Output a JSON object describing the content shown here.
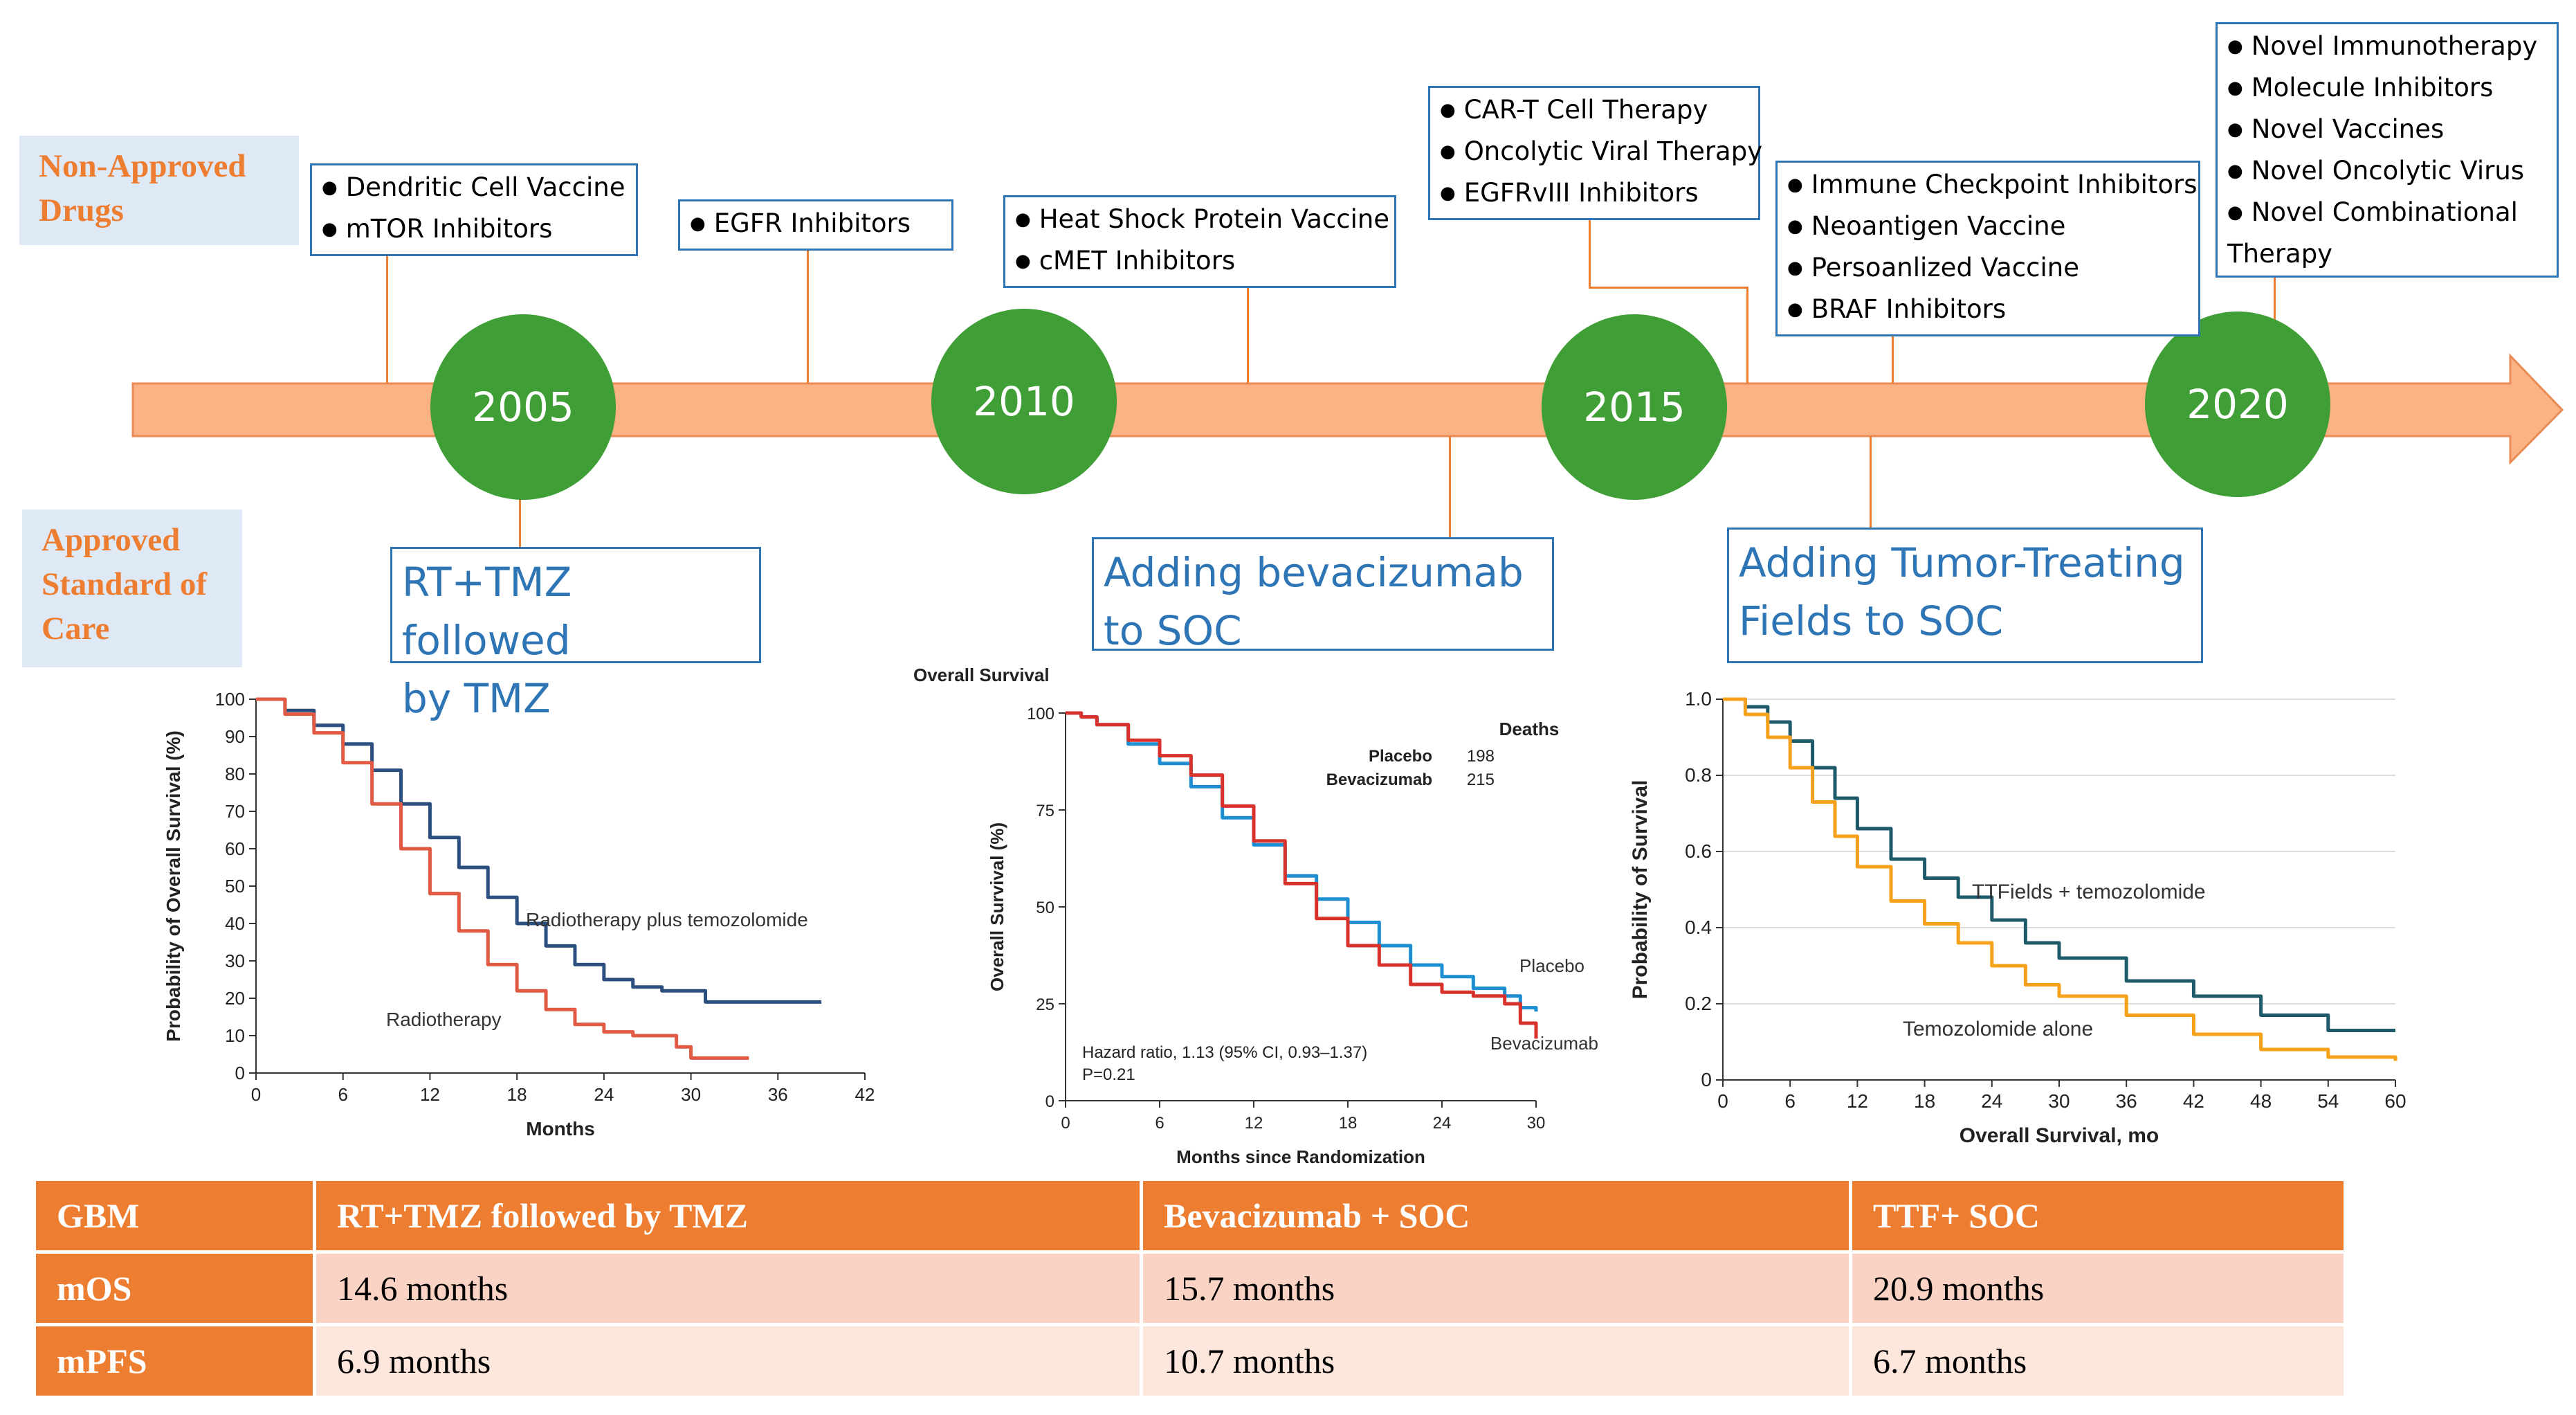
{
  "labels": {
    "non_approved": "Non-Approved Drugs",
    "approved": "Approved Standard of Care"
  },
  "timeline": {
    "years": [
      "2005",
      "2010",
      "2015",
      "2020"
    ],
    "colors": {
      "arrow": "#fbb285",
      "circle": "#3f9e35",
      "connector": "#ed7d31",
      "box_border": "#2e75b6"
    }
  },
  "non_approved_boxes": [
    {
      "items": [
        "Dendritic Cell Vaccine",
        "mTOR Inhibitors"
      ]
    },
    {
      "items": [
        "EGFR Inhibitors"
      ]
    },
    {
      "items": [
        "Heat Shock Protein Vaccine",
        "cMET Inhibitors"
      ]
    },
    {
      "items": [
        "CAR-T Cell Therapy",
        "Oncolytic Viral Therapy",
        "EGFRvIII Inhibitors"
      ]
    },
    {
      "items": [
        "Immune  Checkpoint Inhibitors",
        "Neoantigen Vaccine",
        "Persoanlized Vaccine",
        "BRAF Inhibitors"
      ]
    },
    {
      "items": [
        "Novel Immunotherapy",
        "Molecule Inhibitors",
        "Novel Vaccines",
        "Novel Oncolytic Virus",
        "Novel Combinational Therapy"
      ]
    }
  ],
  "soc_boxes": [
    {
      "line1": "RT+TMZ followed",
      "line2": "by TMZ"
    },
    {
      "line1": "Adding bevacizumab",
      "line2": "to SOC"
    },
    {
      "line1": "Adding Tumor-Treating",
      "line2": "Fields to SOC"
    }
  ],
  "chart_data": [
    {
      "type": "line",
      "title": "",
      "xlabel": "Months",
      "ylabel": "Probability of Overall Survival (%)",
      "xlim": [
        0,
        42
      ],
      "ylim": [
        0,
        100
      ],
      "xticks": [
        "0",
        "6",
        "12",
        "18",
        "24",
        "30",
        "36",
        "42"
      ],
      "yticks": [
        "0",
        "10",
        "20",
        "30",
        "40",
        "50",
        "60",
        "70",
        "80",
        "90",
        "100"
      ],
      "series": [
        {
          "name": "Radiotherapy plus temozolomide",
          "color": "#2b4f7e",
          "x": [
            0,
            2,
            4,
            6,
            8,
            10,
            12,
            14,
            16,
            18,
            20,
            22,
            24,
            26,
            28,
            30,
            31,
            34,
            36,
            38,
            39
          ],
          "y": [
            100,
            97,
            93,
            88,
            81,
            72,
            63,
            55,
            47,
            40,
            34,
            29,
            25,
            23,
            22,
            22,
            19,
            19,
            19,
            19,
            19
          ]
        },
        {
          "name": "Radiotherapy",
          "color": "#e05a44",
          "x": [
            0,
            2,
            4,
            6,
            8,
            10,
            12,
            14,
            16,
            18,
            20,
            22,
            24,
            26,
            28,
            29,
            30,
            32,
            34
          ],
          "y": [
            100,
            96,
            91,
            83,
            72,
            60,
            48,
            38,
            29,
            22,
            17,
            13,
            11,
            10,
            10,
            7,
            4,
            4,
            4
          ]
        }
      ]
    },
    {
      "type": "line",
      "title": "Overall Survival",
      "xlabel": "Months since Randomization",
      "ylabel": "Overall Survival (%)",
      "xlim": [
        0,
        30
      ],
      "ylim": [
        0,
        100
      ],
      "xticks": [
        "0",
        "6",
        "12",
        "18",
        "24",
        "30"
      ],
      "yticks": [
        "0",
        "25",
        "50",
        "75",
        "100"
      ],
      "legend": {
        "heading": "Deaths",
        "rows": [
          {
            "name": "Placebo",
            "value": "198"
          },
          {
            "name": "Bevacizumab",
            "value": "215"
          }
        ]
      },
      "annotation_line1": "Hazard ratio, 1.13 (95% CI, 0.93–1.37)",
      "annotation_line2": "P=0.21",
      "series": [
        {
          "name": "Placebo",
          "color": "#1c8ed1",
          "x": [
            0,
            1,
            2,
            4,
            6,
            8,
            10,
            12,
            14,
            16,
            18,
            20,
            22,
            24,
            26,
            28,
            29,
            30
          ],
          "y": [
            100,
            99,
            97,
            92,
            87,
            81,
            73,
            66,
            58,
            52,
            46,
            40,
            35,
            32,
            29,
            27,
            24,
            23
          ]
        },
        {
          "name": "Bevacizumab",
          "color": "#d8322d",
          "x": [
            0,
            1,
            2,
            4,
            6,
            8,
            10,
            12,
            14,
            16,
            18,
            20,
            22,
            24,
            26,
            28,
            29,
            30
          ],
          "y": [
            100,
            99,
            97,
            93,
            89,
            84,
            76,
            67,
            56,
            47,
            40,
            35,
            30,
            28,
            27,
            25,
            20,
            16
          ]
        }
      ]
    },
    {
      "type": "line",
      "title": "",
      "xlabel": "Overall Survival, mo",
      "ylabel": "Probability of Survival",
      "xlim": [
        0,
        60
      ],
      "ylim": [
        0,
        1
      ],
      "xticks": [
        "0",
        "6",
        "12",
        "18",
        "24",
        "30",
        "36",
        "42",
        "48",
        "54",
        "60"
      ],
      "yticks": [
        "0",
        "0.2",
        "0.4",
        "0.6",
        "0.8",
        "1.0"
      ],
      "series": [
        {
          "name": "TTFields + temozolomide",
          "color": "#1f5a6b",
          "x": [
            0,
            2,
            4,
            6,
            8,
            10,
            12,
            15,
            18,
            21,
            24,
            27,
            30,
            36,
            42,
            48,
            54,
            60
          ],
          "y": [
            1.0,
            0.98,
            0.94,
            0.89,
            0.82,
            0.74,
            0.66,
            0.58,
            0.53,
            0.48,
            0.42,
            0.36,
            0.32,
            0.26,
            0.22,
            0.17,
            0.13,
            0.13
          ]
        },
        {
          "name": "Temozolomide alone",
          "color": "#f5a11c",
          "x": [
            0,
            2,
            4,
            6,
            8,
            10,
            12,
            15,
            18,
            21,
            24,
            27,
            30,
            36,
            42,
            48,
            54,
            60
          ],
          "y": [
            1.0,
            0.96,
            0.9,
            0.82,
            0.73,
            0.64,
            0.56,
            0.47,
            0.41,
            0.36,
            0.3,
            0.25,
            0.22,
            0.17,
            0.12,
            0.08,
            0.06,
            0.05
          ]
        }
      ]
    }
  ],
  "table": {
    "headers": [
      "GBM",
      "RT+TMZ followed by TMZ",
      "Bevacizumab + SOC",
      "TTF+ SOC"
    ],
    "rows": [
      {
        "label": "mOS",
        "values": [
          "14.6 months",
          "15.7 months",
          "20.9 months"
        ]
      },
      {
        "label": "mPFS",
        "values": [
          "6.9 months",
          "10.7 months",
          "6.7 months"
        ]
      }
    ]
  }
}
